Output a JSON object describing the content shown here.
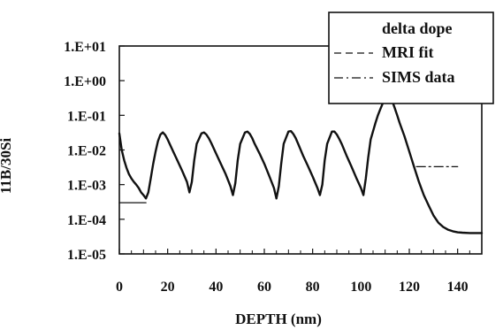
{
  "chart_data": {
    "type": "line",
    "title": "",
    "xlabel": "DEPTH (nm)",
    "ylabel": "11B/30Si",
    "x_scale": "linear",
    "y_scale": "log",
    "xlim": [
      0,
      150
    ],
    "ylim": [
      1e-05,
      10
    ],
    "grid": false,
    "legend_position": "top-right",
    "x_ticks": [
      0,
      20,
      40,
      60,
      80,
      100,
      120,
      140
    ],
    "x_tick_labels": [
      "0",
      "20",
      "40",
      "60",
      "80",
      "100",
      "120",
      "140"
    ],
    "y_ticks": [
      1e-05,
      0.0001,
      0.001,
      0.01,
      0.1,
      1,
      10
    ],
    "y_tick_labels": [
      "1.E-05",
      "1.E-04",
      "1.E-03",
      "1.E-02",
      "1.E-01",
      "1.E+00",
      "1.E+01"
    ],
    "legend": {
      "title": "delta dope",
      "entries": [
        {
          "label": "MRI fit",
          "style": "dashed"
        },
        {
          "label": "SIMS data",
          "style": "dash-dot"
        }
      ]
    },
    "series": [
      {
        "name": "SIMS data",
        "style": "solid",
        "color": "#111111",
        "x": [
          0,
          1,
          2,
          3,
          4,
          5,
          6,
          7,
          8,
          9,
          10,
          11,
          12,
          13,
          14,
          15,
          16,
          17,
          18,
          19,
          20,
          22,
          24,
          26,
          28,
          29,
          30,
          31,
          32,
          34,
          35,
          36,
          37,
          38,
          40,
          42,
          44,
          46,
          47,
          48,
          49,
          50,
          52,
          53,
          54,
          55,
          56,
          58,
          60,
          62,
          64,
          65,
          66,
          67,
          68,
          70,
          71,
          72,
          73,
          74,
          76,
          78,
          80,
          82,
          83,
          84,
          85,
          86,
          88,
          89,
          90,
          91,
          92,
          94,
          96,
          98,
          100,
          101,
          102,
          103,
          104,
          106,
          107,
          108,
          109,
          110,
          111,
          112,
          113,
          114,
          115,
          116,
          118,
          120,
          122,
          124,
          126,
          128,
          130,
          132,
          134,
          136,
          138,
          140,
          142,
          145,
          150
        ],
        "y": [
          0.03,
          0.01,
          0.005,
          0.003,
          0.002,
          0.0015,
          0.0012,
          0.001,
          0.0008,
          0.0006,
          0.0005,
          0.0004,
          0.0006,
          0.0015,
          0.004,
          0.009,
          0.018,
          0.028,
          0.032,
          0.027,
          0.02,
          0.01,
          0.005,
          0.0025,
          0.0012,
          0.0006,
          0.0012,
          0.005,
          0.015,
          0.03,
          0.032,
          0.028,
          0.022,
          0.016,
          0.008,
          0.004,
          0.002,
          0.0009,
          0.0005,
          0.0011,
          0.005,
          0.015,
          0.032,
          0.034,
          0.029,
          0.022,
          0.015,
          0.008,
          0.004,
          0.0018,
          0.0008,
          0.0004,
          0.0009,
          0.004,
          0.015,
          0.034,
          0.035,
          0.029,
          0.022,
          0.015,
          0.007,
          0.0035,
          0.0017,
          0.0008,
          0.0005,
          0.001,
          0.005,
          0.015,
          0.034,
          0.034,
          0.028,
          0.021,
          0.015,
          0.007,
          0.0034,
          0.0016,
          0.0008,
          0.0005,
          0.0015,
          0.006,
          0.02,
          0.06,
          0.1,
          0.15,
          0.22,
          0.28,
          0.32,
          0.3,
          0.25,
          0.16,
          0.1,
          0.06,
          0.025,
          0.009,
          0.0032,
          0.0012,
          0.0005,
          0.00025,
          0.00013,
          8e-05,
          6e-05,
          5e-05,
          4.5e-05,
          4.2e-05,
          4.1e-05,
          4e-05,
          4e-05
        ]
      },
      {
        "name": "MRI fit",
        "style": "solid-flat",
        "color": "#111111",
        "x": [
          0,
          11
        ],
        "y": [
          0.0003,
          0.0003
        ]
      },
      {
        "name": "SIMS data",
        "style": "dash-dot",
        "color": "#111111",
        "x": [
          123,
          140
        ],
        "y": [
          0.0033,
          0.0033
        ]
      }
    ]
  }
}
